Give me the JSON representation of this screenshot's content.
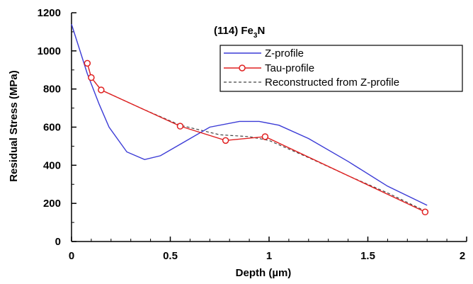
{
  "chart_data": {
    "type": "line",
    "annotation": {
      "prefix": "(114)  Fe",
      "subscript": "3",
      "suffix": "N"
    },
    "xlabel": "Depth  (µm)",
    "ylabel": "Residual  Stress  (MPa)",
    "xlim": [
      0,
      2
    ],
    "ylim": [
      0,
      1200
    ],
    "x_ticks": [
      0,
      0.5,
      1,
      1.5,
      2
    ],
    "x_tick_labels": [
      "0",
      "0.5",
      "1",
      "1.5",
      "2"
    ],
    "y_ticks": [
      0,
      200,
      400,
      600,
      800,
      1000,
      1200
    ],
    "y_tick_labels": [
      "0",
      "200",
      "400",
      "600",
      "800",
      "1000",
      "1200"
    ],
    "grid": false,
    "legend_position": "top-right",
    "series": [
      {
        "name": "Z-profile",
        "color": "#3b3bd6",
        "style": "solid",
        "marker": "none",
        "x": [
          0,
          0.08,
          0.14,
          0.19,
          0.28,
          0.37,
          0.45,
          0.55,
          0.7,
          0.85,
          0.95,
          1.05,
          1.2,
          1.4,
          1.6,
          1.8
        ],
        "y": [
          1140,
          880,
          720,
          600,
          470,
          430,
          450,
          510,
          600,
          630,
          630,
          610,
          540,
          420,
          290,
          190
        ]
      },
      {
        "name": "Tau-profile",
        "color": "#e02020",
        "style": "solid",
        "marker": "circle",
        "x": [
          0.08,
          0.1,
          0.15,
          0.55,
          0.78,
          0.98,
          1.79
        ],
        "y": [
          935,
          860,
          795,
          605,
          530,
          550,
          155
        ]
      },
      {
        "name": "Reconstructed from Z-profile",
        "color": "#444444",
        "style": "dashed",
        "marker": "none",
        "x": [
          0.08,
          0.1,
          0.15,
          0.35,
          0.55,
          0.75,
          0.9,
          1.0,
          1.2,
          1.4,
          1.6,
          1.79
        ],
        "y": [
          935,
          860,
          795,
          700,
          610,
          560,
          550,
          530,
          440,
          345,
          255,
          160
        ]
      }
    ]
  }
}
